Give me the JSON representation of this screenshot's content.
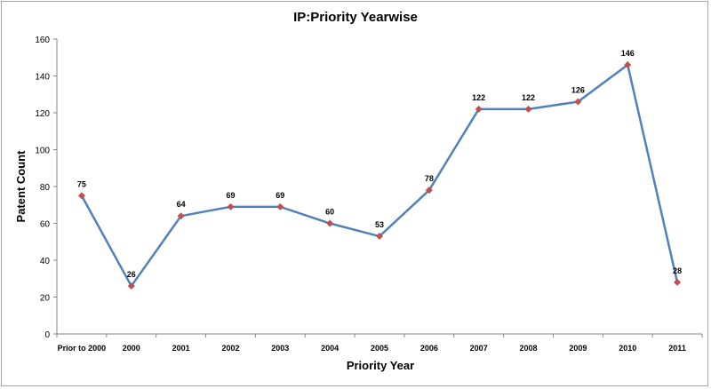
{
  "chart_data": {
    "type": "line",
    "title": "IP:Priority Yearwise",
    "xlabel": "Priority Year",
    "ylabel": "Patent Count",
    "categories": [
      "Prior to 2000",
      "2000",
      "2001",
      "2002",
      "2003",
      "2004",
      "2005",
      "2006",
      "2007",
      "2008",
      "2009",
      "2010",
      "2011"
    ],
    "series": [
      {
        "name": "Patent Count",
        "values": [
          75,
          26,
          64,
          69,
          69,
          60,
          53,
          78,
          122,
          122,
          126,
          146,
          28
        ]
      }
    ],
    "ylim": [
      0,
      160
    ],
    "yticks": [
      0,
      20,
      40,
      60,
      80,
      100,
      120,
      140,
      160
    ],
    "grid": false,
    "legend": "none",
    "colors": {
      "line": "#4f81bd",
      "marker": "#c0504d",
      "axis": "#868686"
    }
  }
}
